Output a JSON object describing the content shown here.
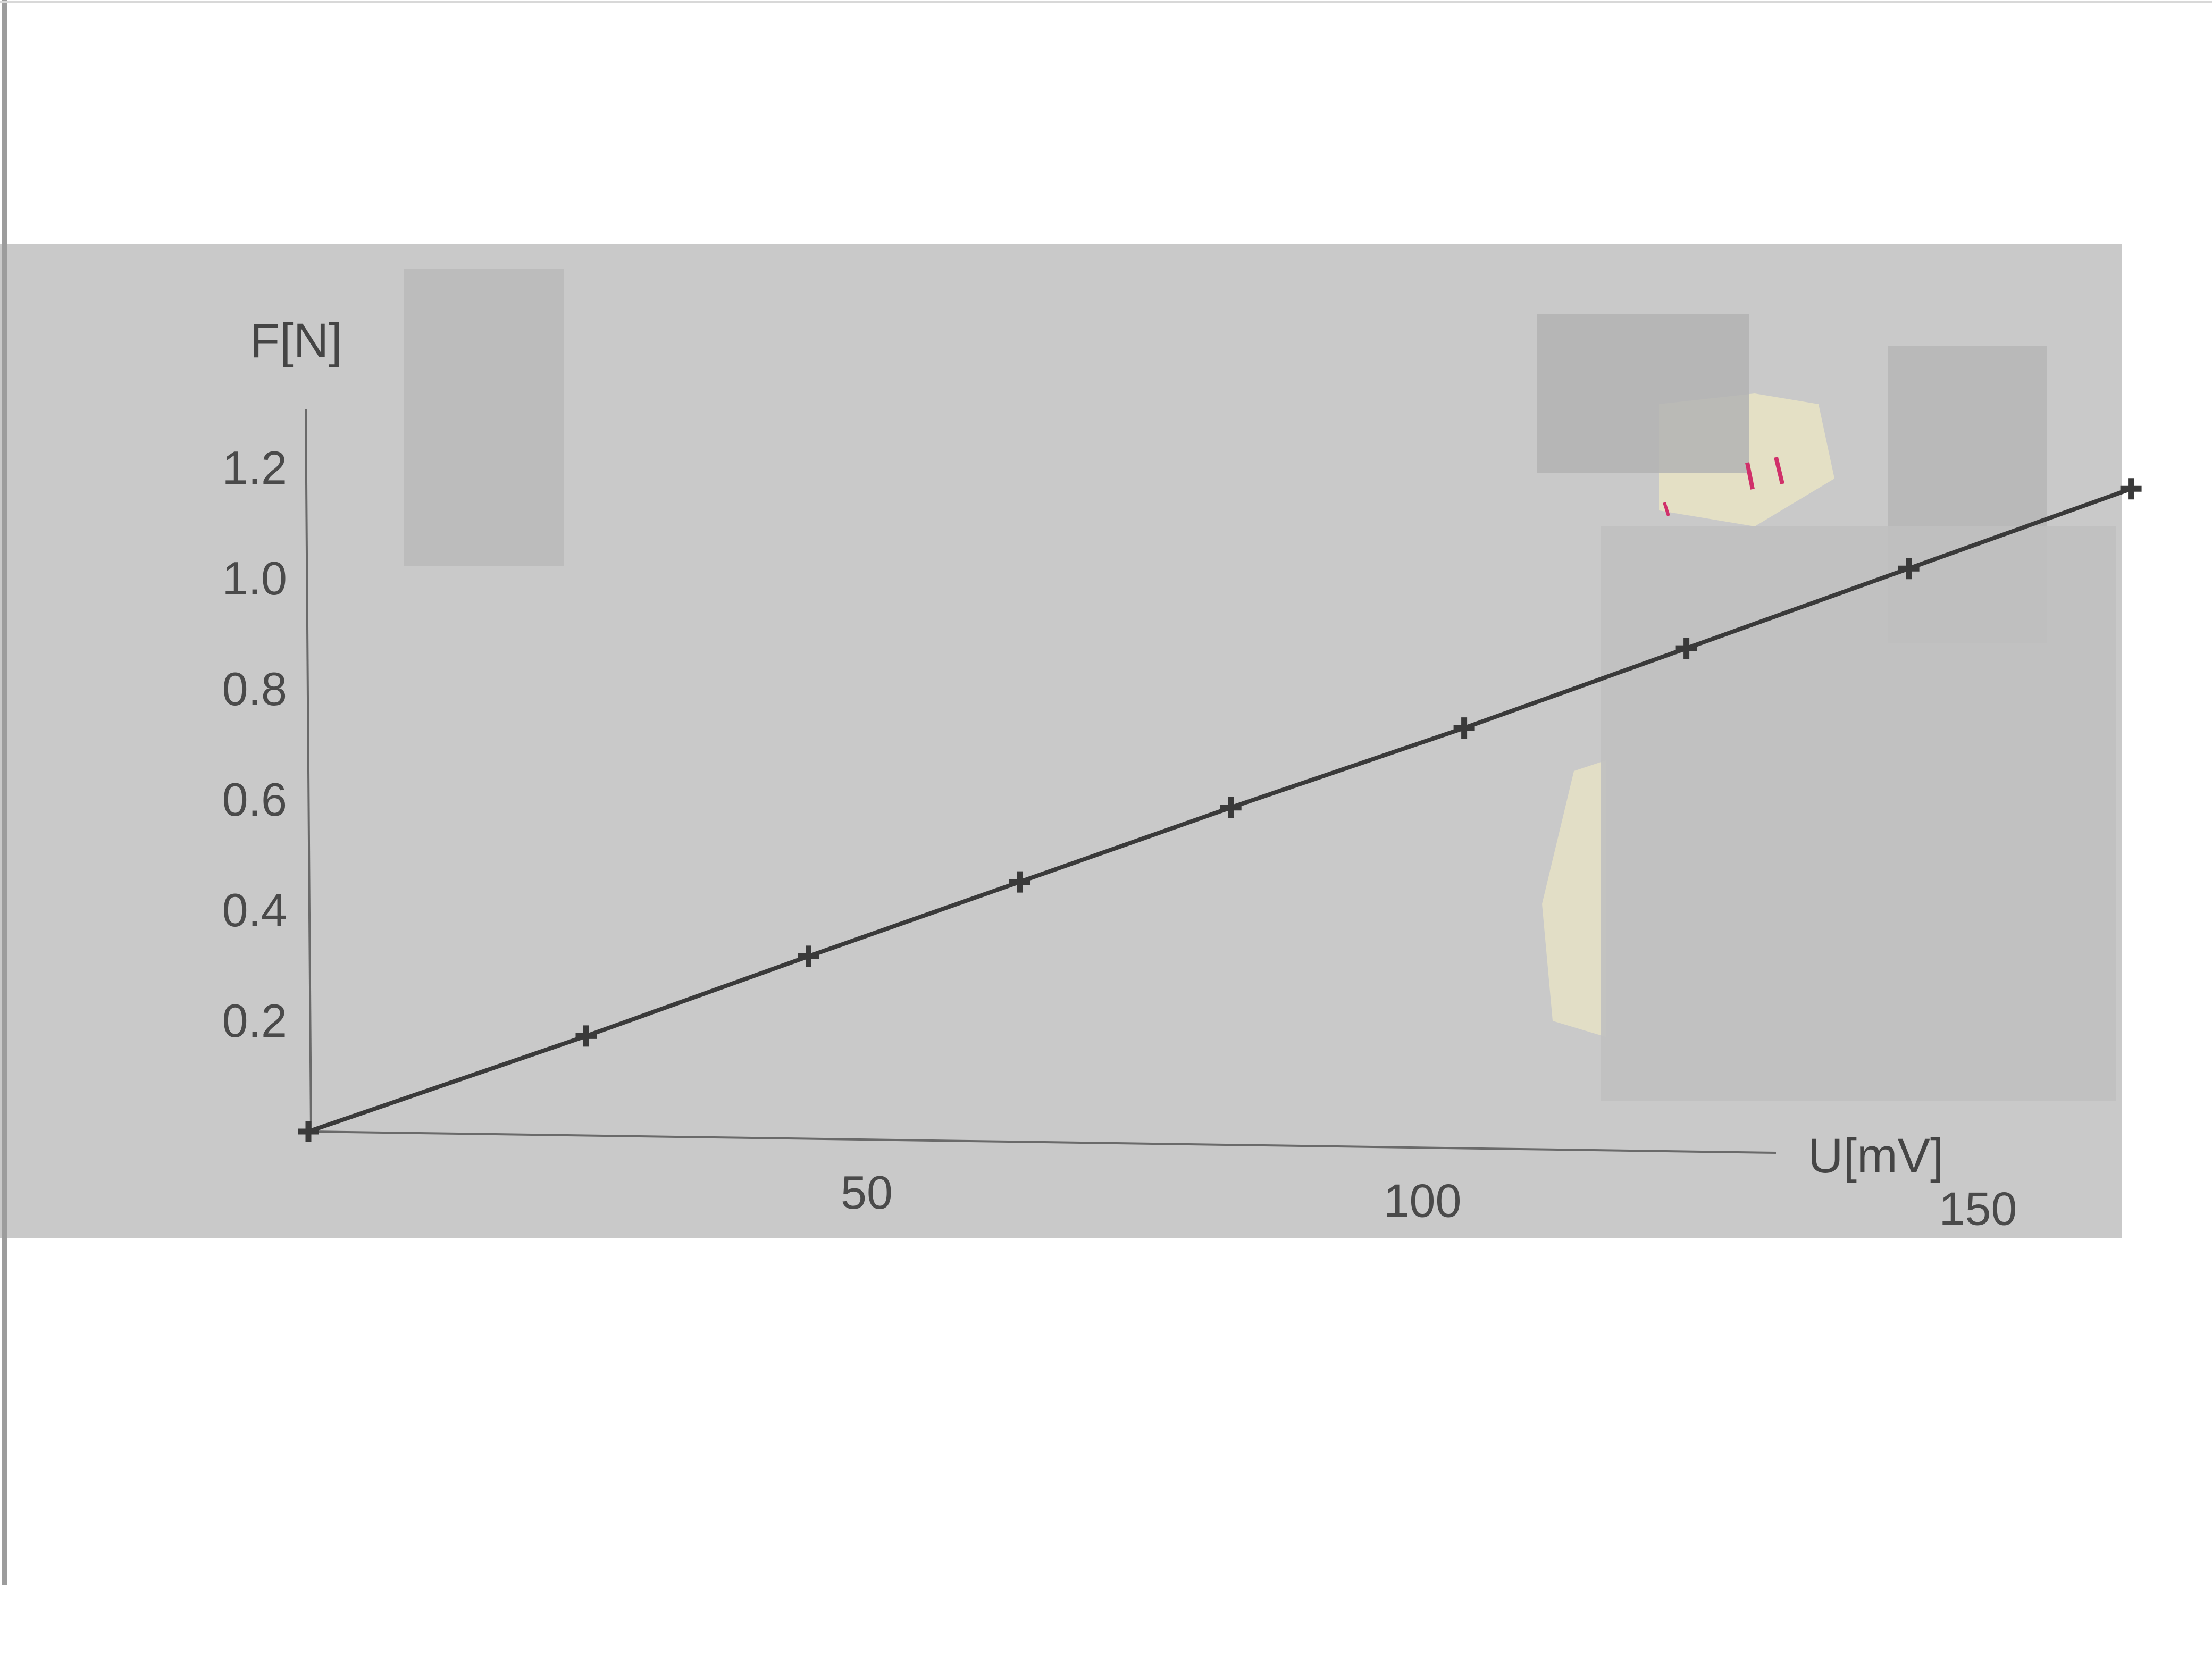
{
  "colors": {
    "page": "#ffffff",
    "paper": "#c9c9c9",
    "ink": "#3a3a3a",
    "redaction": "#b6b6b6",
    "tape": "#e9e4c4",
    "pen_mark": "#d0306a"
  },
  "chart_data": {
    "type": "line",
    "title": "",
    "xlabel": "U[mV]",
    "ylabel": "F[N]",
    "xlim": [
      0,
      165
    ],
    "ylim": [
      0,
      1.3
    ],
    "x_ticks": [
      50,
      100,
      150
    ],
    "x_tick_labels": [
      "50",
      "100",
      "150"
    ],
    "y_ticks": [
      0.2,
      0.4,
      0.6,
      0.8,
      1.0,
      1.2
    ],
    "y_tick_labels": [
      "0.2",
      "0.4",
      "0.6",
      "0.8",
      "1.0",
      "1.2"
    ],
    "grid": false,
    "legend": "none",
    "marker": "plus",
    "series": [
      {
        "x": [
          0,
          25,
          45,
          64,
          83,
          104,
          124,
          144,
          164
        ],
        "y": [
          0,
          0.18,
          0.33,
          0.47,
          0.61,
          0.76,
          0.91,
          1.06,
          1.21
        ]
      }
    ]
  }
}
